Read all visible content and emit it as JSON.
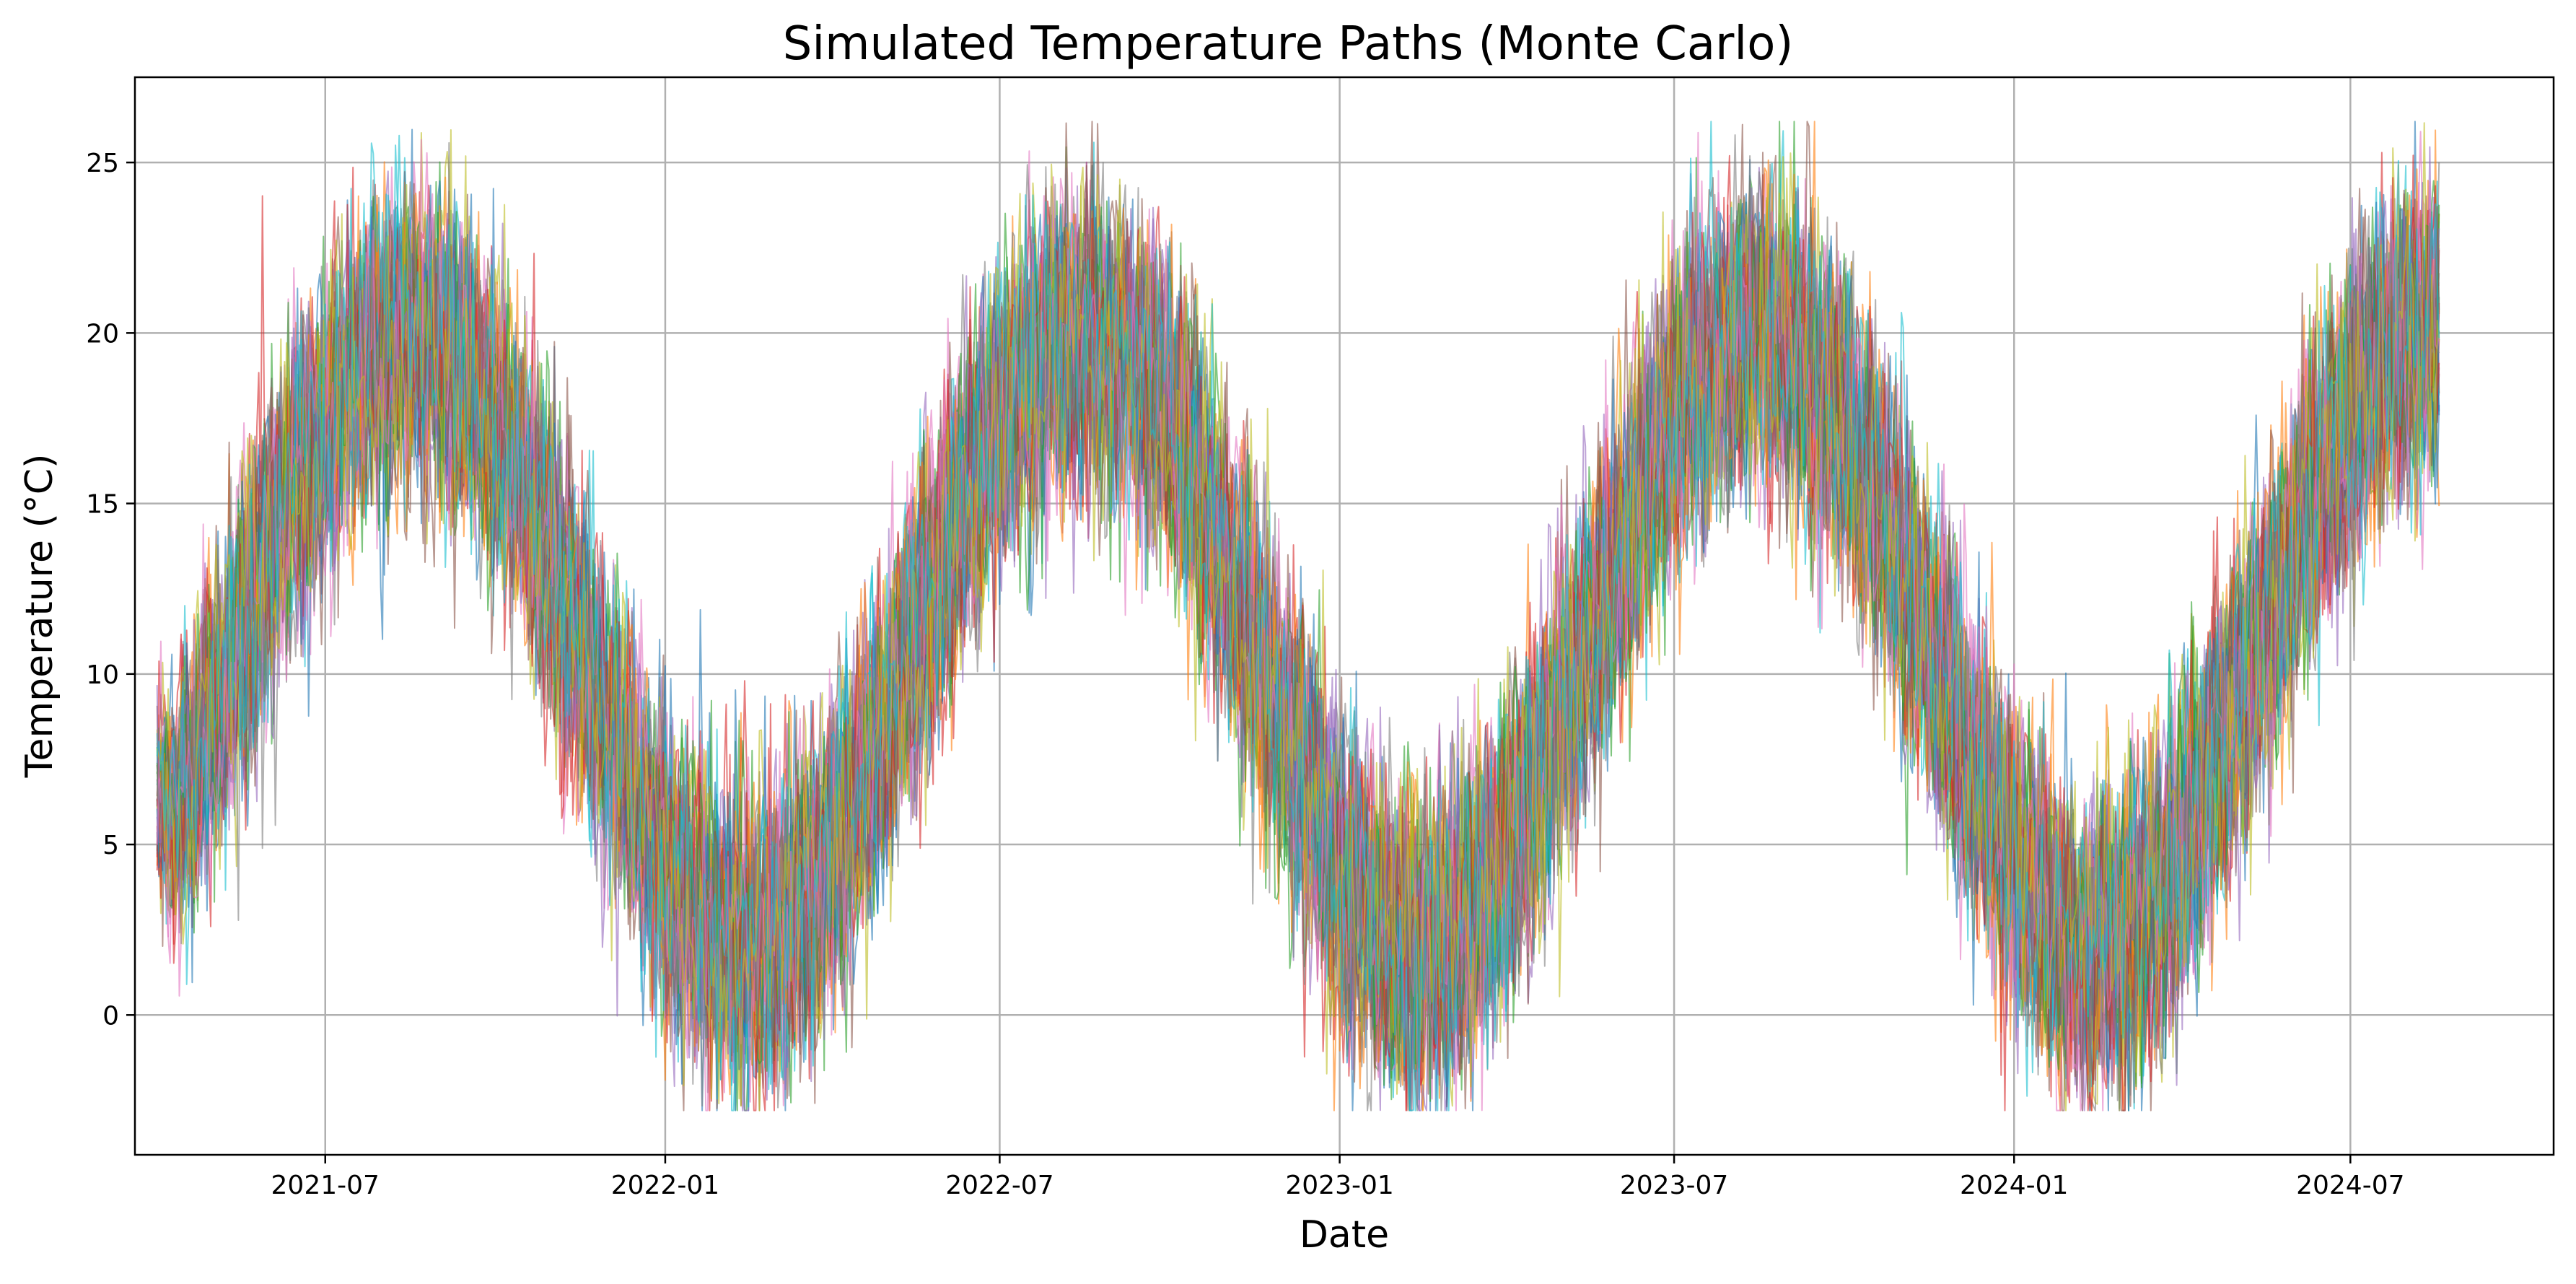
{
  "chart_data": {
    "type": "line",
    "title": "Simulated Temperature Paths (Monte Carlo)",
    "xlabel": "Date",
    "ylabel": "Temperature (°C)",
    "x_axis": {
      "kind": "date",
      "range": [
        "2021-03-20",
        "2024-10-19"
      ],
      "data_range": [
        "2021-04-01",
        "2024-08-18"
      ],
      "ticks": [
        {
          "value": "2021-07-01",
          "label": "2021-07"
        },
        {
          "value": "2022-01-01",
          "label": "2022-01"
        },
        {
          "value": "2022-07-01",
          "label": "2022-07"
        },
        {
          "value": "2023-01-01",
          "label": "2023-01"
        },
        {
          "value": "2023-07-01",
          "label": "2023-07"
        },
        {
          "value": "2024-01-01",
          "label": "2024-01"
        },
        {
          "value": "2024-07-01",
          "label": "2024-07"
        }
      ]
    },
    "y_axis": {
      "range": [
        -4.1,
        27.5
      ],
      "ticks": [
        {
          "value": 0,
          "label": "0"
        },
        {
          "value": 5,
          "label": "5"
        },
        {
          "value": 10,
          "label": "10"
        },
        {
          "value": 15,
          "label": "15"
        },
        {
          "value": 20,
          "label": "20"
        },
        {
          "value": 25,
          "label": "25"
        }
      ]
    },
    "grid": true,
    "legend": "none",
    "series_model": {
      "description_kind": "seasonal sinusoid with daily noise",
      "count": 40,
      "mean": 11.0,
      "amplitude": 9.0,
      "peak_date": "2021-08-15",
      "period_days": 365,
      "noise_sd": 2.2,
      "start_value": 6.5,
      "line_opacity": 0.6
    },
    "series_envelope": [
      {
        "x": "2021-04-01",
        "low": 0.2,
        "high": 11.8
      },
      {
        "x": "2021-08-15",
        "low": 12.0,
        "high": 25.1
      },
      {
        "x": "2022-02-15",
        "low": -2.6,
        "high": 10.2
      },
      {
        "x": "2022-08-15",
        "low": 12.5,
        "high": 24.8
      },
      {
        "x": "2023-02-15",
        "low": -1.6,
        "high": 11.5
      },
      {
        "x": "2023-08-15",
        "low": 11.3,
        "high": 26.1
      },
      {
        "x": "2024-02-15",
        "low": -1.7,
        "high": 12.6
      },
      {
        "x": "2024-08-18",
        "low": 15.2,
        "high": 25.8
      }
    ],
    "palette": [
      "#1f77b4",
      "#ff7f0e",
      "#2ca02c",
      "#d62728",
      "#9467bd",
      "#8c564b",
      "#e377c2",
      "#7f7f7f",
      "#bcbd22",
      "#17becf"
    ]
  }
}
